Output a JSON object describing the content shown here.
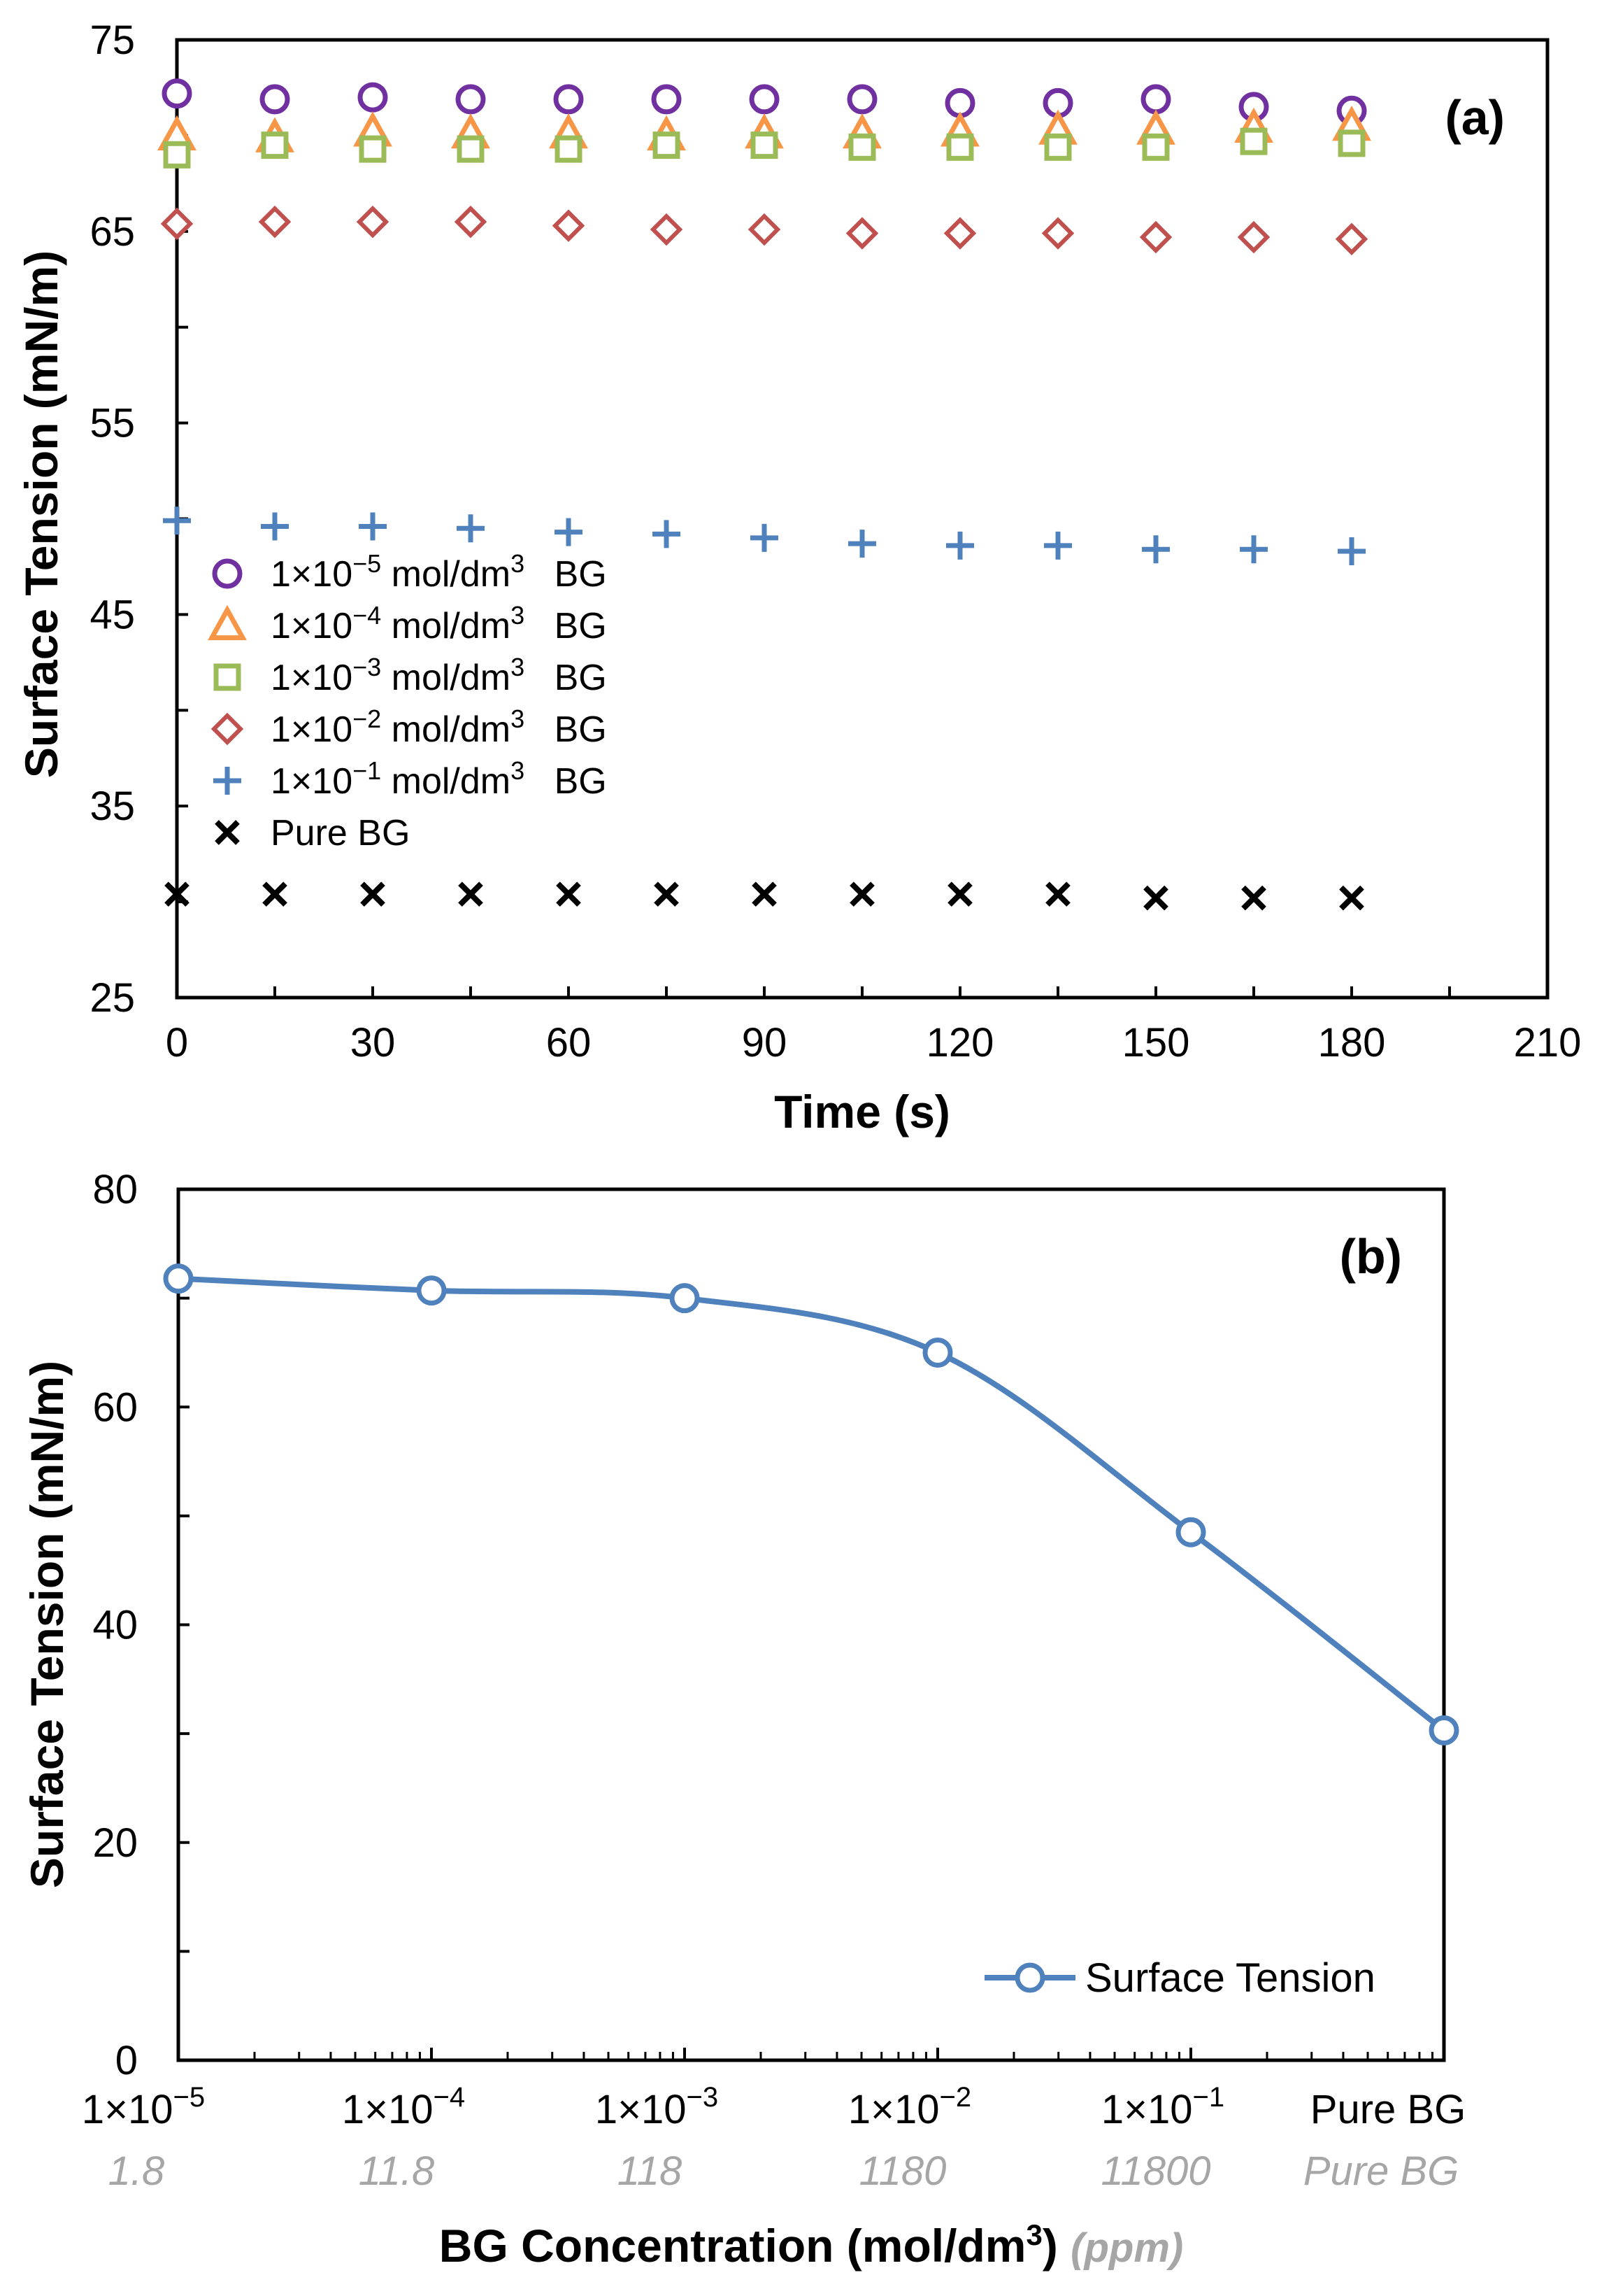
{
  "colors": {
    "purple": "#7030a0",
    "orange": "#f79646",
    "green": "#9bbb59",
    "red": "#c0504d",
    "blue": "#4f81bd",
    "black": "#000000",
    "line": "#4f81bd",
    "ppm_gray": "#a6a6a6"
  },
  "chart_data": [
    {
      "type": "scatter",
      "panel_label": "(a)",
      "xlabel": "Time (s)",
      "ylabel": "Surface Tension (mN/m)",
      "xlim": [
        0,
        210
      ],
      "ylim": [
        25,
        75
      ],
      "x_ticks": [
        "0",
        "30",
        "60",
        "90",
        "120",
        "150",
        "180",
        "210"
      ],
      "y_ticks": [
        "25",
        "35",
        "45",
        "55",
        "65",
        "75"
      ],
      "legend_position": "left-middle",
      "x": [
        0,
        15,
        30,
        45,
        60,
        75,
        90,
        105,
        120,
        135,
        150,
        165,
        180
      ],
      "series": [
        {
          "name_prefix": "1×10",
          "exponent": "−5",
          "name_mid": " mol/dm",
          "unit_sup": "3",
          "name_suffix": "  BG",
          "marker": "circle",
          "color": "#7030a0",
          "values": [
            72.2,
            71.9,
            72.0,
            71.9,
            71.9,
            71.9,
            71.9,
            71.9,
            71.7,
            71.7,
            71.9,
            71.5,
            71.3
          ]
        },
        {
          "name_prefix": "1×10",
          "exponent": "−4",
          "name_mid": " mol/dm",
          "unit_sup": "3",
          "name_suffix": "  BG",
          "marker": "triangle",
          "color": "#f79646",
          "values": [
            70.0,
            69.9,
            70.2,
            70.1,
            70.1,
            70.0,
            70.1,
            70.1,
            70.2,
            70.3,
            70.3,
            70.4,
            70.5
          ]
        },
        {
          "name_prefix": "1×10",
          "exponent": "−3",
          "name_mid": " mol/dm",
          "unit_sup": "3",
          "name_suffix": "  BG",
          "marker": "square",
          "color": "#9bbb59",
          "values": [
            69.0,
            69.5,
            69.3,
            69.3,
            69.3,
            69.5,
            69.5,
            69.4,
            69.4,
            69.4,
            69.4,
            69.7,
            69.6
          ]
        },
        {
          "name_prefix": "1×10",
          "exponent": "−2",
          "name_mid": " mol/dm",
          "unit_sup": "3",
          "name_suffix": "  BG",
          "marker": "diamond",
          "color": "#c0504d",
          "values": [
            65.4,
            65.5,
            65.5,
            65.5,
            65.3,
            65.1,
            65.1,
            64.9,
            64.9,
            64.9,
            64.7,
            64.7,
            64.6
          ]
        },
        {
          "name_prefix": "1×10",
          "exponent": "−1",
          "name_mid": " mol/dm",
          "unit_sup": "3",
          "name_suffix": "  BG",
          "marker": "plus",
          "color": "#4f81bd",
          "values": [
            49.9,
            49.6,
            49.6,
            49.5,
            49.3,
            49.2,
            49.0,
            48.7,
            48.6,
            48.6,
            48.4,
            48.4,
            48.3
          ]
        },
        {
          "name_prefix": "Pure BG",
          "exponent": "",
          "name_mid": "",
          "unit_sup": "",
          "name_suffix": "",
          "marker": "x",
          "color": "#000000",
          "values": [
            30.4,
            30.4,
            30.4,
            30.4,
            30.4,
            30.4,
            30.4,
            30.4,
            30.4,
            30.4,
            30.2,
            30.2,
            30.2
          ]
        }
      ]
    },
    {
      "type": "line",
      "panel_label": "(b)",
      "xlabel_main": "BG Concentration (mol/dm",
      "xlabel_sup": "3",
      "xlabel_close": ")",
      "xlabel_ppm": "(ppm)",
      "ylabel": "Surface Tension (mN/m)",
      "ylim": [
        0,
        80
      ],
      "y_ticks": [
        "0",
        "20",
        "40",
        "60",
        "80"
      ],
      "categories": [
        {
          "base": "1×10",
          "exp": "−5",
          "ppm": "1.8"
        },
        {
          "base": "1×10",
          "exp": "−4",
          "ppm": "11.8"
        },
        {
          "base": "1×10",
          "exp": "−3",
          "ppm": "118"
        },
        {
          "base": "1×10",
          "exp": "−2",
          "ppm": "1180"
        },
        {
          "base": "1×10",
          "exp": "−1",
          "ppm": "11800"
        },
        {
          "base": "Pure BG",
          "exp": "",
          "ppm": "Pure BG"
        }
      ],
      "series": [
        {
          "name": "Surface Tension",
          "marker": "circle",
          "color": "#4f81bd",
          "values": [
            71.8,
            70.7,
            70.0,
            65.0,
            48.5,
            30.3
          ]
        }
      ],
      "legend_position": "bottom-right"
    }
  ]
}
